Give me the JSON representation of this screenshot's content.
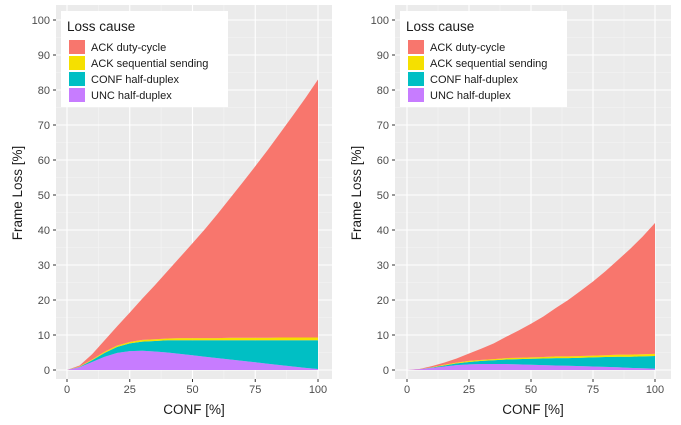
{
  "legend": {
    "title": "Loss cause",
    "items": [
      {
        "label": "ACK duty-cycle",
        "color": "#F8766D"
      },
      {
        "label": "ACK sequential sending",
        "color": "#F5E000"
      },
      {
        "label": "CONF half-duplex",
        "color": "#00BFC4"
      },
      {
        "label": "UNC half-duplex",
        "color": "#C77CFF"
      }
    ]
  },
  "chart_data": [
    {
      "type": "area",
      "stacked": true,
      "xlabel": "CONF [%]",
      "ylabel": "Frame Loss [%]",
      "xlim": [
        0,
        100
      ],
      "ylim": [
        0,
        100
      ],
      "x_ticks": [
        "0",
        "25",
        "50",
        "75",
        "100"
      ],
      "y_ticks": [
        "0",
        "10",
        "20",
        "30",
        "40",
        "50",
        "60",
        "70",
        "80",
        "90",
        "100"
      ],
      "legend_position": "top-left",
      "grid": true,
      "x": [
        0,
        5,
        10,
        15,
        20,
        25,
        30,
        35,
        40,
        45,
        50,
        55,
        60,
        65,
        70,
        75,
        80,
        85,
        90,
        95,
        100
      ],
      "series": [
        {
          "name": "UNC half-duplex",
          "values": [
            0,
            0.8,
            2.3,
            3.8,
            4.9,
            5.4,
            5.5,
            5.3,
            5.0,
            4.6,
            4.2,
            3.8,
            3.4,
            3.0,
            2.6,
            2.2,
            1.8,
            1.4,
            1.0,
            0.6,
            0.3
          ]
        },
        {
          "name": "CONF half-duplex",
          "values": [
            0,
            0.1,
            0.5,
            1.1,
            1.7,
            2.2,
            2.6,
            3.0,
            3.5,
            3.9,
            4.3,
            4.7,
            5.1,
            5.5,
            5.9,
            6.3,
            6.7,
            7.1,
            7.5,
            7.9,
            8.2
          ]
        },
        {
          "name": "ACK sequential sending",
          "values": [
            0,
            0.1,
            0.2,
            0.3,
            0.4,
            0.4,
            0.5,
            0.5,
            0.5,
            0.6,
            0.6,
            0.6,
            0.6,
            0.7,
            0.7,
            0.7,
            0.7,
            0.8,
            0.8,
            0.8,
            0.8
          ]
        },
        {
          "name": "ACK duty-cycle",
          "values": [
            0,
            0.3,
            1.5,
            3.3,
            5.5,
            8.4,
            11.8,
            15.4,
            19.2,
            23.1,
            27.1,
            31.2,
            35.5,
            39.9,
            44.4,
            49.0,
            53.7,
            58.5,
            63.4,
            68.4,
            73.7
          ]
        }
      ]
    },
    {
      "type": "area",
      "stacked": true,
      "xlabel": "CONF [%]",
      "ylabel": "Frame Loss [%]",
      "xlim": [
        0,
        100
      ],
      "ylim": [
        0,
        100
      ],
      "x_ticks": [
        "0",
        "25",
        "50",
        "75",
        "100"
      ],
      "y_ticks": [
        "0",
        "10",
        "20",
        "30",
        "40",
        "50",
        "60",
        "70",
        "80",
        "90",
        "100"
      ],
      "legend_position": "top-left",
      "grid": true,
      "x": [
        0,
        5,
        10,
        15,
        20,
        25,
        30,
        35,
        40,
        45,
        50,
        55,
        60,
        65,
        70,
        75,
        80,
        85,
        90,
        95,
        100
      ],
      "series": [
        {
          "name": "UNC half-duplex",
          "values": [
            0,
            0.2,
            0.6,
            1.0,
            1.4,
            1.6,
            1.7,
            1.7,
            1.7,
            1.6,
            1.5,
            1.4,
            1.3,
            1.2,
            1.1,
            1.0,
            0.9,
            0.8,
            0.6,
            0.5,
            0.4
          ]
        },
        {
          "name": "CONF half-duplex",
          "values": [
            0,
            0,
            0.1,
            0.3,
            0.5,
            0.7,
            0.9,
            1.1,
            1.3,
            1.5,
            1.7,
            1.9,
            2.1,
            2.2,
            2.4,
            2.6,
            2.8,
            3.0,
            3.2,
            3.4,
            3.6
          ]
        },
        {
          "name": "ACK sequential sending",
          "values": [
            0,
            0,
            0.1,
            0.2,
            0.2,
            0.3,
            0.3,
            0.3,
            0.4,
            0.4,
            0.4,
            0.4,
            0.5,
            0.5,
            0.5,
            0.5,
            0.5,
            0.6,
            0.6,
            0.6,
            0.6
          ]
        },
        {
          "name": "ACK duty-cycle",
          "values": [
            0,
            0.1,
            0.3,
            0.6,
            1.2,
            2.1,
            3.2,
            4.5,
            6.1,
            7.8,
            9.6,
            11.6,
            13.8,
            16.1,
            18.6,
            21.2,
            24.0,
            27.0,
            30.2,
            33.6,
            37.4
          ]
        }
      ]
    }
  ]
}
